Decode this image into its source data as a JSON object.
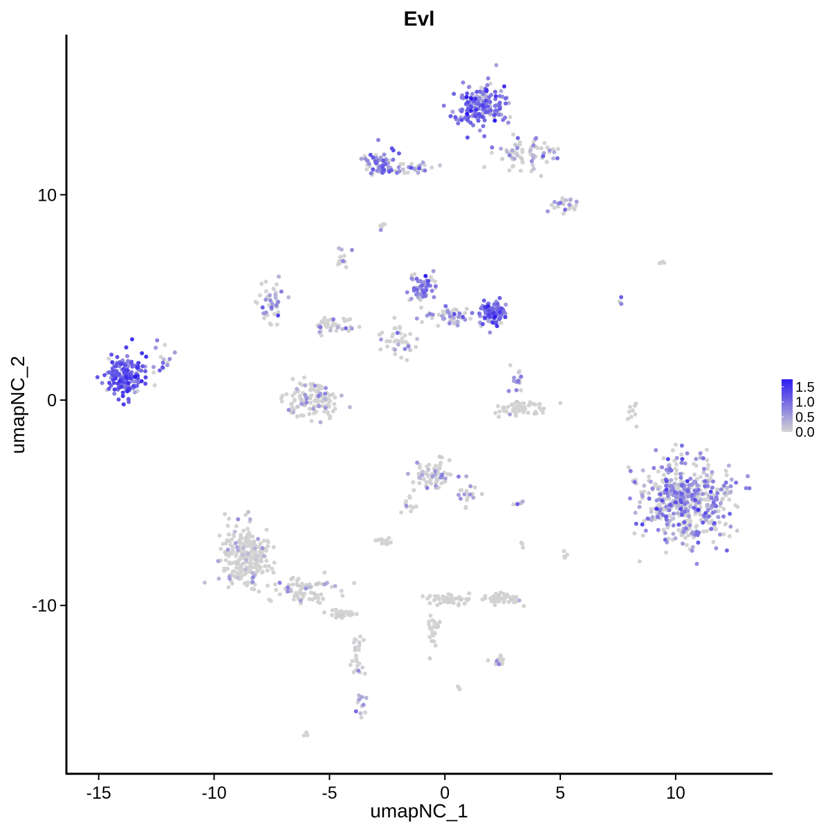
{
  "chart_data": {
    "type": "scatter",
    "title": "Evl",
    "xlabel": "umapNC_1",
    "ylabel": "umapNC_2",
    "xlim": [
      -16.4,
      14.2
    ],
    "ylim": [
      -18.2,
      17.8
    ],
    "x_ticks": [
      -15,
      -10,
      -5,
      0,
      5,
      10
    ],
    "x_tick_labels": [
      "-15",
      "-10",
      "-5",
      "0",
      "5",
      "10"
    ],
    "y_ticks": [
      -10,
      0,
      10
    ],
    "y_tick_labels": [
      "-10",
      "0",
      "10"
    ],
    "grid": false,
    "legend_position": "right",
    "color_scale": {
      "low_color": "#d3d3d3",
      "high_color": "#2e1cf0",
      "min": 0.0,
      "max": 1.75,
      "breaks": [
        1.5,
        1.0,
        0.5,
        0.0
      ],
      "break_labels": [
        "1.5",
        "1.0",
        "0.5",
        "0.0"
      ]
    },
    "clusters": [
      {
        "center": [
          -13.8,
          1.2
        ],
        "spread": [
          0.7,
          0.9
        ],
        "n": 170,
        "mean_expr": 1.05
      },
      {
        "center": [
          -12.2,
          1.8
        ],
        "spread": [
          0.4,
          0.8
        ],
        "n": 14,
        "mean_expr": 0.7
      },
      {
        "center": [
          -5.8,
          0.0
        ],
        "spread": [
          1.0,
          0.7
        ],
        "n": 120,
        "mean_expr": 0.25
      },
      {
        "center": [
          -7.5,
          4.8
        ],
        "spread": [
          0.4,
          0.8
        ],
        "n": 45,
        "mean_expr": 0.55
      },
      {
        "center": [
          -4.8,
          3.6
        ],
        "spread": [
          0.9,
          0.4
        ],
        "n": 40,
        "mean_expr": 0.3
      },
      {
        "center": [
          -4.4,
          7.0
        ],
        "spread": [
          0.25,
          0.5
        ],
        "n": 12,
        "mean_expr": 0.2
      },
      {
        "center": [
          -2.8,
          11.5
        ],
        "spread": [
          0.6,
          0.5
        ],
        "n": 60,
        "mean_expr": 0.8
      },
      {
        "center": [
          -1.3,
          11.3
        ],
        "spread": [
          0.9,
          0.2
        ],
        "n": 25,
        "mean_expr": 0.6
      },
      {
        "center": [
          1.5,
          14.3
        ],
        "spread": [
          0.9,
          0.9
        ],
        "n": 170,
        "mean_expr": 0.9
      },
      {
        "center": [
          3.5,
          12.0
        ],
        "spread": [
          1.1,
          0.7
        ],
        "n": 70,
        "mean_expr": 0.4
      },
      {
        "center": [
          5.2,
          9.6
        ],
        "spread": [
          0.5,
          0.4
        ],
        "n": 25,
        "mean_expr": 0.5
      },
      {
        "center": [
          -2.7,
          8.5
        ],
        "spread": [
          0.15,
          0.15
        ],
        "n": 5,
        "mean_expr": 0.4
      },
      {
        "center": [
          -1.0,
          5.5
        ],
        "spread": [
          0.5,
          0.6
        ],
        "n": 60,
        "mean_expr": 0.7
      },
      {
        "center": [
          2.1,
          4.2
        ],
        "spread": [
          0.5,
          0.5
        ],
        "n": 90,
        "mean_expr": 0.95
      },
      {
        "center": [
          0.3,
          4.0
        ],
        "spread": [
          0.9,
          0.4
        ],
        "n": 50,
        "mean_expr": 0.5
      },
      {
        "center": [
          -2.0,
          3.0
        ],
        "spread": [
          0.8,
          0.9
        ],
        "n": 40,
        "mean_expr": 0.3
      },
      {
        "center": [
          3.3,
          -0.4
        ],
        "spread": [
          0.9,
          0.3
        ],
        "n": 55,
        "mean_expr": 0.05
      },
      {
        "center": [
          3.1,
          0.9
        ],
        "spread": [
          0.25,
          0.5
        ],
        "n": 14,
        "mean_expr": 0.6
      },
      {
        "center": [
          10.4,
          -4.9
        ],
        "spread": [
          1.6,
          1.6
        ],
        "n": 520,
        "mean_expr": 0.6
      },
      {
        "center": [
          -0.5,
          -3.6
        ],
        "spread": [
          0.7,
          0.6
        ],
        "n": 70,
        "mean_expr": 0.3
      },
      {
        "center": [
          1.0,
          -4.5
        ],
        "spread": [
          0.4,
          0.6
        ],
        "n": 18,
        "mean_expr": 0.4
      },
      {
        "center": [
          -1.5,
          -5.0
        ],
        "spread": [
          0.3,
          0.5
        ],
        "n": 12,
        "mean_expr": 0.05
      },
      {
        "center": [
          -2.6,
          -6.9
        ],
        "spread": [
          0.3,
          0.15
        ],
        "n": 14,
        "mean_expr": 0.1
      },
      {
        "center": [
          3.0,
          -5.0
        ],
        "spread": [
          0.3,
          0.1
        ],
        "n": 6,
        "mean_expr": 0.4
      },
      {
        "center": [
          -8.6,
          -7.6
        ],
        "spread": [
          0.9,
          1.3
        ],
        "n": 250,
        "mean_expr": 0.12
      },
      {
        "center": [
          -6.2,
          -9.3
        ],
        "spread": [
          1.3,
          0.5
        ],
        "n": 70,
        "mean_expr": 0.1
      },
      {
        "center": [
          -4.4,
          -10.4
        ],
        "spread": [
          0.4,
          0.2
        ],
        "n": 35,
        "mean_expr": 0.05
      },
      {
        "center": [
          -3.8,
          -12.5
        ],
        "spread": [
          0.2,
          1.0
        ],
        "n": 25,
        "mean_expr": 0.2
      },
      {
        "center": [
          -3.6,
          -14.9
        ],
        "spread": [
          0.2,
          0.4
        ],
        "n": 12,
        "mean_expr": 0.6
      },
      {
        "center": [
          0.2,
          -9.7
        ],
        "spread": [
          0.7,
          0.2
        ],
        "n": 45,
        "mean_expr": 0.02
      },
      {
        "center": [
          2.4,
          -9.7
        ],
        "spread": [
          0.8,
          0.25
        ],
        "n": 45,
        "mean_expr": 0.02
      },
      {
        "center": [
          -0.5,
          -11.0
        ],
        "spread": [
          0.2,
          0.9
        ],
        "n": 25,
        "mean_expr": 0.1
      },
      {
        "center": [
          2.3,
          -12.7
        ],
        "spread": [
          0.3,
          0.2
        ],
        "n": 12,
        "mean_expr": 0.3
      },
      {
        "center": [
          8.1,
          -0.7
        ],
        "spread": [
          0.15,
          0.8
        ],
        "n": 10,
        "mean_expr": 0.05
      },
      {
        "center": [
          -6.0,
          -16.3
        ],
        "spread": [
          0.1,
          0.1
        ],
        "n": 3,
        "mean_expr": 0.0
      },
      {
        "center": [
          0.6,
          -14.0
        ],
        "spread": [
          0.1,
          0.1
        ],
        "n": 3,
        "mean_expr": 0.0
      },
      {
        "center": [
          9.4,
          6.7
        ],
        "spread": [
          0.2,
          0.05
        ],
        "n": 4,
        "mean_expr": 0.0
      },
      {
        "center": [
          7.7,
          4.8
        ],
        "spread": [
          0.2,
          0.2
        ],
        "n": 3,
        "mean_expr": 0.6
      },
      {
        "center": [
          5.2,
          -7.5
        ],
        "spread": [
          0.1,
          0.3
        ],
        "n": 4,
        "mean_expr": 0.0
      },
      {
        "center": [
          3.3,
          -7.2
        ],
        "spread": [
          0.1,
          0.3
        ],
        "n": 3,
        "mean_expr": 0.0
      }
    ]
  }
}
